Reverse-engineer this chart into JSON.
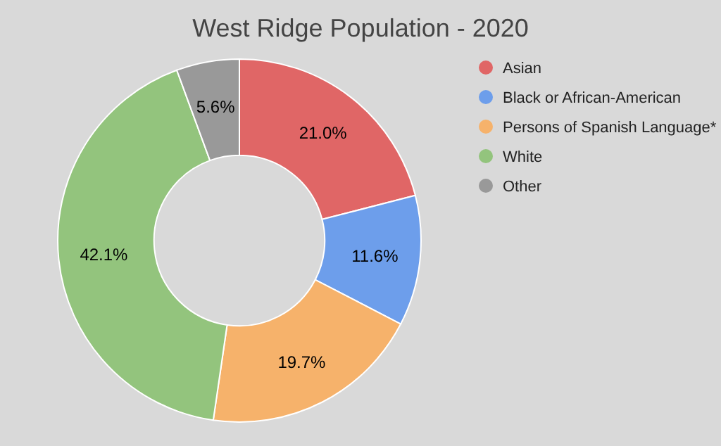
{
  "chart_data": {
    "type": "donut",
    "title": "West Ridge Population - 2020",
    "categories": [
      "Asian",
      "Black or African-American",
      "Persons of Spanish Language*",
      "White",
      "Other"
    ],
    "values": [
      21.0,
      11.6,
      19.7,
      42.1,
      5.6
    ],
    "value_labels": [
      "21.0%",
      "11.6%",
      "19.7%",
      "42.1%",
      "5.6%"
    ],
    "colors": [
      "#e06666",
      "#6d9eeb",
      "#f6b26b",
      "#93c47d",
      "#999999"
    ],
    "legend": "top right"
  }
}
